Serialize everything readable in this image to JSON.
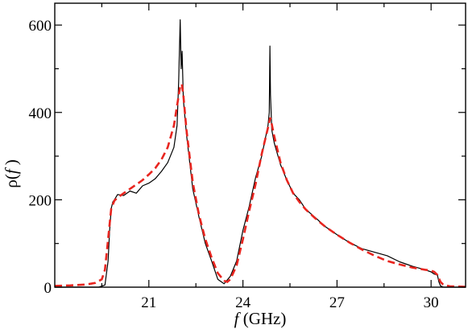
{
  "chart_data": {
    "type": "line",
    "title": "",
    "xlabel": "f (GHz)",
    "xlabel_italic": "f",
    "xlabel_rest": " (GHz)",
    "ylabel": "ρ(f )",
    "ylabel_pre": "ρ(",
    "ylabel_italic": "f",
    "ylabel_post": " )",
    "xlim": [
      18.0,
      31.1
    ],
    "ylim": [
      0,
      650
    ],
    "x_ticks": [
      21,
      24,
      27,
      30
    ],
    "x_tick_labels": [
      "21",
      "24",
      "27",
      "30"
    ],
    "y_ticks": [
      0,
      200,
      400,
      600
    ],
    "y_tick_labels": [
      "0",
      "200",
      "400",
      "600"
    ],
    "grid": false,
    "legend": "none",
    "series": [
      {
        "style": "solid",
        "color": "#000000",
        "x": [
          18.0,
          19.0,
          19.4,
          19.6,
          19.7,
          19.75,
          19.8,
          19.85,
          19.9,
          20.0,
          20.2,
          20.4,
          20.6,
          20.8,
          21.0,
          21.2,
          21.4,
          21.6,
          21.8,
          21.9,
          21.95,
          22.0,
          22.03,
          22.06,
          22.1,
          22.2,
          22.4,
          22.6,
          22.8,
          23.0,
          23.2,
          23.4,
          23.6,
          23.8,
          24.0,
          24.2,
          24.4,
          24.6,
          24.7,
          24.8,
          24.84,
          24.86,
          24.88,
          24.92,
          25.0,
          25.2,
          25.4,
          25.6,
          25.8,
          26.0,
          26.3,
          26.6,
          27.0,
          27.4,
          27.8,
          28.2,
          28.6,
          29.0,
          29.4,
          29.8,
          30.0,
          30.1,
          30.2,
          30.25,
          30.3,
          30.4,
          30.6,
          31.1
        ],
        "y": [
          0,
          0,
          0,
          5,
          60,
          130,
          180,
          195,
          200,
          212,
          210,
          220,
          215,
          232,
          238,
          248,
          265,
          285,
          320,
          370,
          470,
          612,
          500,
          540,
          430,
          350,
          225,
          160,
          100,
          60,
          18,
          8,
          25,
          60,
          130,
          185,
          250,
          300,
          335,
          370,
          400,
          552,
          440,
          360,
          330,
          280,
          245,
          215,
          200,
          178,
          160,
          140,
          120,
          102,
          88,
          80,
          72,
          58,
          48,
          40,
          35,
          30,
          28,
          12,
          3,
          0,
          0,
          0
        ]
      },
      {
        "style": "dashed",
        "color": "#e8251f",
        "x": [
          18.0,
          18.5,
          19.0,
          19.3,
          19.5,
          19.6,
          19.7,
          19.8,
          19.9,
          20.0,
          20.2,
          20.4,
          20.6,
          20.8,
          21.0,
          21.2,
          21.4,
          21.6,
          21.8,
          21.9,
          22.0,
          22.05,
          22.1,
          22.2,
          22.4,
          22.6,
          22.8,
          23.0,
          23.2,
          23.4,
          23.5,
          23.6,
          23.8,
          24.0,
          24.2,
          24.4,
          24.6,
          24.8,
          24.87,
          24.9,
          25.0,
          25.2,
          25.4,
          25.6,
          25.8,
          26.0,
          26.3,
          26.6,
          27.0,
          27.4,
          27.8,
          28.2,
          28.6,
          29.0,
          29.4,
          29.8,
          30.0,
          30.1,
          30.2,
          30.3,
          30.4,
          30.6,
          31.1
        ],
        "y": [
          3,
          4,
          6,
          10,
          18,
          40,
          110,
          180,
          198,
          205,
          215,
          225,
          235,
          245,
          258,
          272,
          292,
          320,
          370,
          415,
          460,
          465,
          440,
          360,
          240,
          165,
          110,
          68,
          32,
          15,
          12,
          18,
          50,
          110,
          175,
          235,
          305,
          365,
          388,
          380,
          345,
          285,
          245,
          215,
          195,
          178,
          158,
          140,
          120,
          102,
          86,
          72,
          60,
          52,
          45,
          40,
          38,
          35,
          28,
          12,
          5,
          2,
          1
        ]
      }
    ]
  }
}
